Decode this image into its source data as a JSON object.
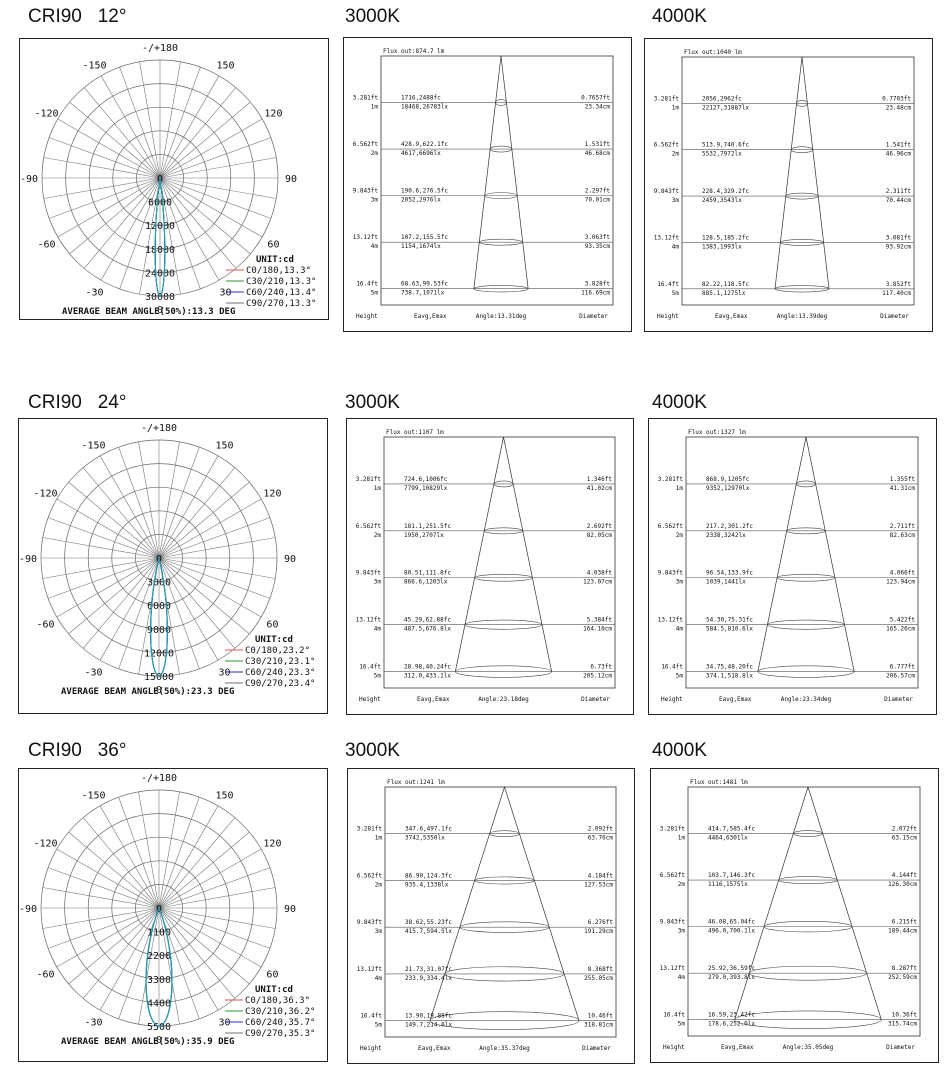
{
  "rows": [
    {
      "header": "CRI90   12°",
      "polar": {
        "angle_labels": {
          "top": "-/+180",
          "ul1": "-150",
          "ur1": "150",
          "ul2": "-120",
          "ur2": "120",
          "l": "-90",
          "r": "90",
          "ll1": "-60",
          "lr1": "60",
          "ll2": "-30",
          "lr2": "30",
          "bottom": "0"
        },
        "radial_labels": [
          "0",
          "6000",
          "12000",
          "18000",
          "24000",
          "30000"
        ],
        "beam_half_angle_deg": 6.65,
        "unit": "UNIT:cd",
        "legend": [
          "C0/180,13.3°",
          "C30/210,13.3°",
          "C60/240,13.4°",
          "C90/270,13.3°"
        ],
        "legend_colors": [
          "#e05050",
          "#2a9a2a",
          "#2a2ad0",
          "#707070"
        ],
        "beam_text": "AVERAGE BEAM ANGLE(50%):13.3 DEG"
      },
      "cones": [
        {
          "header": "3000K",
          "flux": "Flux out:874.7 lm",
          "angle": "Angle:13.31deg",
          "cone_half_angle_deg": 6.65,
          "rows": [
            {
              "ft": "3.281ft",
              "m": "1m",
              "fc": "1716,2488fc",
              "lx": "18468,26783lx",
              "dft": "0.7657ft",
              "dcm": "23.34cm"
            },
            {
              "ft": "6.562ft",
              "m": "2m",
              "fc": "428.9,622.1fc",
              "lx": "4617,6696lx",
              "dft": "1.531ft",
              "dcm": "46.68cm"
            },
            {
              "ft": "9.843ft",
              "m": "3m",
              "fc": "190.6,276.5fc",
              "lx": "2052,2976lx",
              "dft": "2.297ft",
              "dcm": "70.01cm"
            },
            {
              "ft": "13.12ft",
              "m": "4m",
              "fc": "107.2,155.5fc",
              "lx": "1154,1674lx",
              "dft": "3.063ft",
              "dcm": "93.35cm"
            },
            {
              "ft": "16.4ft",
              "m": "5m",
              "fc": "68.63,99.53fc",
              "lx": "738.7,1071lx",
              "dft": "3.828ft",
              "dcm": "116.69cm"
            }
          ]
        },
        {
          "header": "4000K",
          "flux": "Flux out:1040 lm",
          "angle": "Angle:13.39deg",
          "cone_half_angle_deg": 6.65,
          "rows": [
            {
              "ft": "3.281ft",
              "m": "1m",
              "fc": "2056,2962fc",
              "lx": "22127,31887lx",
              "dft": "0.7703ft",
              "dcm": "23.48cm"
            },
            {
              "ft": "6.562ft",
              "m": "2m",
              "fc": "513.9,740.6fc",
              "lx": "5532,7972lx",
              "dft": "1.541ft",
              "dcm": "46.96cm"
            },
            {
              "ft": "9.843ft",
              "m": "3m",
              "fc": "228.4,329.2fc",
              "lx": "2459,3543lx",
              "dft": "2.311ft",
              "dcm": "70.44cm"
            },
            {
              "ft": "13.12ft",
              "m": "4m",
              "fc": "128.5,185.2fc",
              "lx": "1383,1993lx",
              "dft": "3.081ft",
              "dcm": "93.92cm"
            },
            {
              "ft": "16.4ft",
              "m": "5m",
              "fc": "82.22,118.5fc",
              "lx": "885.1,1275lx",
              "dft": "3.852ft",
              "dcm": "117.40cm"
            }
          ]
        }
      ]
    },
    {
      "header": "CRI90   24°",
      "polar": {
        "angle_labels": {
          "top": "-/+180",
          "ul1": "-150",
          "ur1": "150",
          "ul2": "-120",
          "ur2": "120",
          "l": "-90",
          "r": "90",
          "ll1": "-60",
          "lr1": "60",
          "ll2": "-30",
          "lr2": "30",
          "bottom": "0"
        },
        "radial_labels": [
          "0",
          "3000",
          "6000",
          "9000",
          "12000",
          "15000"
        ],
        "beam_half_angle_deg": 11.6,
        "unit": "UNIT:cd",
        "legend": [
          "C0/180,23.2°",
          "C30/210,23.1°",
          "C60/240,23.3°",
          "C90/270,23.4°"
        ],
        "legend_colors": [
          "#e05050",
          "#2a9a2a",
          "#2a2ad0",
          "#707070"
        ],
        "beam_text": "AVERAGE BEAM ANGLE(50%):23.3 DEG"
      },
      "cones": [
        {
          "header": "3000K",
          "flux": "Flux out:1107 lm",
          "angle": "Angle:23.18deg",
          "cone_half_angle_deg": 11.6,
          "rows": [
            {
              "ft": "3.281ft",
              "m": "1m",
              "fc": "724.6,1006fc",
              "lx": "7799,10829lx",
              "dft": "1.346ft",
              "dcm": "41.02cm"
            },
            {
              "ft": "6.562ft",
              "m": "2m",
              "fc": "181.1,251.5fc",
              "lx": "1950,2707lx",
              "dft": "2.692ft",
              "dcm": "82.05cm"
            },
            {
              "ft": "9.843ft",
              "m": "3m",
              "fc": "80.51,111.8fc",
              "lx": "866.6,1203lx",
              "dft": "4.038ft",
              "dcm": "123.07cm"
            },
            {
              "ft": "13.12ft",
              "m": "4m",
              "fc": "45.29,62.88fc",
              "lx": "487.5,676.8lx",
              "dft": "5.384ft",
              "dcm": "164.10cm"
            },
            {
              "ft": "16.4ft",
              "m": "5m",
              "fc": "28.98,40.24fc",
              "lx": "312.0,433.1lx",
              "dft": "6.73ft",
              "dcm": "205.12cm"
            }
          ]
        },
        {
          "header": "4000K",
          "flux": "Flux out:1327 lm",
          "angle": "Angle:23.34deg",
          "cone_half_angle_deg": 11.6,
          "rows": [
            {
              "ft": "3.281ft",
              "m": "1m",
              "fc": "868.9,1205fc",
              "lx": "9352,12970lx",
              "dft": "1.355ft",
              "dcm": "41.31cm"
            },
            {
              "ft": "6.562ft",
              "m": "2m",
              "fc": "217.2,301.2fc",
              "lx": "2338,3242lx",
              "dft": "2.711ft",
              "dcm": "82.63cm"
            },
            {
              "ft": "9.843ft",
              "m": "3m",
              "fc": "96.54,133.9fc",
              "lx": "1039,1441lx",
              "dft": "4.066ft",
              "dcm": "123.94cm"
            },
            {
              "ft": "13.12ft",
              "m": "4m",
              "fc": "54.30,75.31fc",
              "lx": "584.5,810.6lx",
              "dft": "5.422ft",
              "dcm": "165.26cm"
            },
            {
              "ft": "16.4ft",
              "m": "5m",
              "fc": "34.75,48.20fc",
              "lx": "374.1,518.8lx",
              "dft": "6.777ft",
              "dcm": "206.57cm"
            }
          ]
        }
      ]
    },
    {
      "header": "CRI90   36°",
      "polar": {
        "angle_labels": {
          "top": "-/+180",
          "ul1": "-150",
          "ur1": "150",
          "ul2": "-120",
          "ur2": "120",
          "l": "-90",
          "r": "90",
          "ll1": "-60",
          "lr1": "60",
          "ll2": "-30",
          "lr2": "30",
          "bottom": "0"
        },
        "radial_labels": [
          "0",
          "1100",
          "2200",
          "3300",
          "4400",
          "5500"
        ],
        "beam_half_angle_deg": 18,
        "unit": "UNIT:cd",
        "legend": [
          "C0/180,36.3°",
          "C30/210,36.2°",
          "C60/240,35.7°",
          "C90/270,35.3°"
        ],
        "legend_colors": [
          "#e05050",
          "#2a9a2a",
          "#2a2ad0",
          "#707070"
        ],
        "beam_text": "AVERAGE BEAM ANGLE(50%):35.9 DEG"
      },
      "cones": [
        {
          "header": "3000K",
          "flux": "Flux out:1241 lm",
          "angle": "Angle:35.37deg",
          "cone_half_angle_deg": 17.7,
          "rows": [
            {
              "ft": "3.281ft",
              "m": "1m",
              "fc": "347.6,497.1fc",
              "lx": "3742,5350lx",
              "dft": "2.092ft",
              "dcm": "63.76cm"
            },
            {
              "ft": "6.562ft",
              "m": "2m",
              "fc": "86.90,124.3fc",
              "lx": "935.4,1338lx",
              "dft": "4.184ft",
              "dcm": "127.53cm"
            },
            {
              "ft": "9.843ft",
              "m": "3m",
              "fc": "38.62,55.23fc",
              "lx": "415.7,594.5lx",
              "dft": "6.276ft",
              "dcm": "191.29cm"
            },
            {
              "ft": "13.12ft",
              "m": "4m",
              "fc": "21.73,31.07fc",
              "lx": "233.9,334.4lx",
              "dft": "8.368ft",
              "dcm": "255.05cm"
            },
            {
              "ft": "16.4ft",
              "m": "5m",
              "fc": "13.90,19.88fc",
              "lx": "149.7,214.0lx",
              "dft": "10.46ft",
              "dcm": "318.81cm"
            }
          ]
        },
        {
          "header": "4000K",
          "flux": "Flux out:1481 lm",
          "angle": "Angle:35.05deg",
          "cone_half_angle_deg": 17.5,
          "rows": [
            {
              "ft": "3.281ft",
              "m": "1m",
              "fc": "414.7,585.4fc",
              "lx": "4464,6301lx",
              "dft": "2.072ft",
              "dcm": "63.15cm"
            },
            {
              "ft": "6.562ft",
              "m": "2m",
              "fc": "103.7,146.3fc",
              "lx": "1116,1575lx",
              "dft": "4.144ft",
              "dcm": "126.30cm"
            },
            {
              "ft": "9.843ft",
              "m": "3m",
              "fc": "46.08,65.04fc",
              "lx": "496.0,700.1lx",
              "dft": "6.215ft",
              "dcm": "189.44cm"
            },
            {
              "ft": "13.12ft",
              "m": "4m",
              "fc": "25.92,36.59fc",
              "lx": "279.0,393.8lx",
              "dft": "8.287ft",
              "dcm": "252.59cm"
            },
            {
              "ft": "16.4ft",
              "m": "5m",
              "fc": "16.59,23.42fc",
              "lx": "178.6,252.0lx",
              "dft": "10.36ft",
              "dcm": "315.74cm"
            }
          ]
        }
      ]
    }
  ],
  "cone_footer": {
    "height": "Height",
    "eavg": "Eavg,Emax",
    "diameter": "Diameter"
  }
}
